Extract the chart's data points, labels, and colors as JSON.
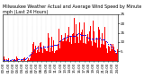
{
  "title": "Milwaukee Weather Actual and Average Wind Speed by Minute mph (Last 24 Hours)",
  "title_fontsize": 3.5,
  "bar_color": "#ff0000",
  "dot_color": "#0000ff",
  "background_color": "#ffffff",
  "ylim": [
    0,
    25
  ],
  "yticks": [
    5,
    10,
    15,
    20,
    25
  ],
  "ylabel_fontsize": 3.0,
  "xlabel_fontsize": 2.8,
  "n_points": 288,
  "n_xticks": 24,
  "grid_color": "#bbbbbb",
  "dot_size": 0.6,
  "bar_width": 1.0,
  "seed": 42
}
